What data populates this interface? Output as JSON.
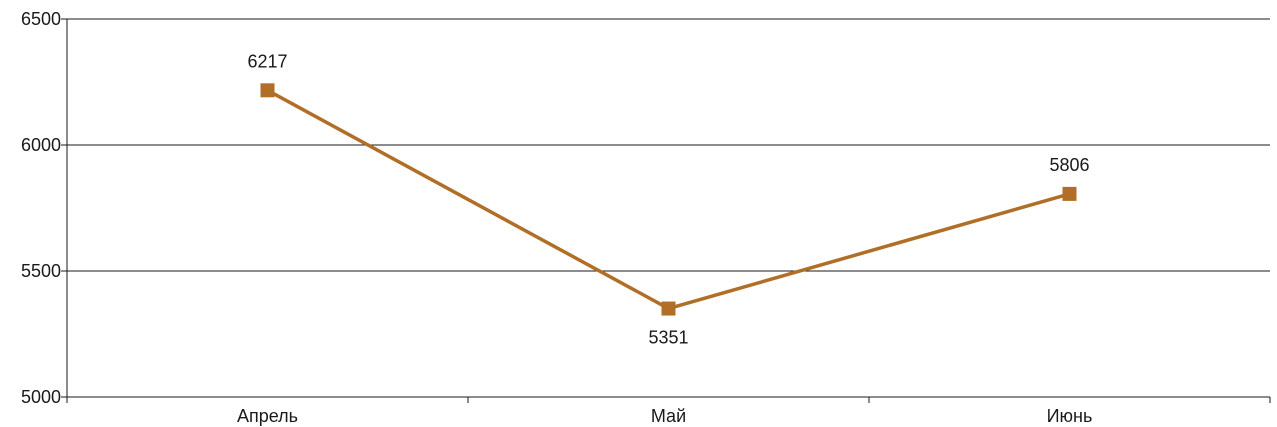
{
  "chart_data": {
    "type": "line",
    "title": "",
    "xlabel": "",
    "ylabel": "",
    "categories": [
      "Апрель",
      "Май",
      "Июнь"
    ],
    "series": [
      {
        "values": [
          6217,
          5351,
          5806
        ],
        "color": "#b06e26",
        "marker": "square"
      }
    ],
    "data_labels": [
      "6217",
      "5351",
      "5806"
    ],
    "data_label_positions": [
      "above",
      "below",
      "above"
    ],
    "ylim": [
      5000,
      6500
    ],
    "yticks": [
      5000,
      5500,
      6000,
      6500
    ],
    "ytick_labels": [
      "5000",
      "5500",
      "6000",
      "6500"
    ],
    "grid": true,
    "legend": "none"
  }
}
